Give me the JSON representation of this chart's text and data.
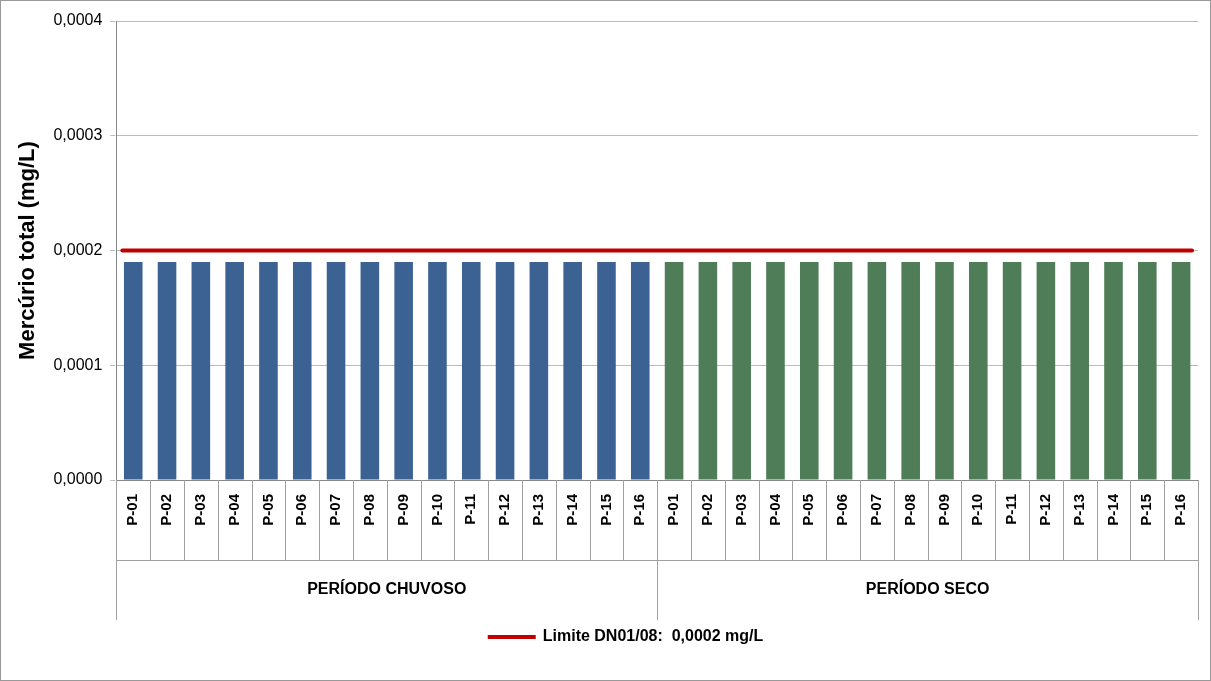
{
  "chart_data": {
    "type": "bar",
    "ylabel": "Mercúrio total (mg/L)",
    "categories": [
      "P-01",
      "P-02",
      "P-03",
      "P-04",
      "P-05",
      "P-06",
      "P-07",
      "P-08",
      "P-09",
      "P-10",
      "P-11",
      "P-12",
      "P-13",
      "P-14",
      "P-15",
      "P-16",
      "P-01",
      "P-02",
      "P-03",
      "P-04",
      "P-05",
      "P-06",
      "P-07",
      "P-08",
      "P-09",
      "P-10",
      "P-11",
      "P-12",
      "P-13",
      "P-14",
      "P-15",
      "P-16"
    ],
    "values": [
      0.00019,
      0.00019,
      0.00019,
      0.00019,
      0.00019,
      0.00019,
      0.00019,
      0.00019,
      0.00019,
      0.00019,
      0.00019,
      0.00019,
      0.00019,
      0.00019,
      0.00019,
      0.00019,
      0.00019,
      0.00019,
      0.00019,
      0.00019,
      0.00019,
      0.00019,
      0.00019,
      0.00019,
      0.00019,
      0.00019,
      0.00019,
      0.00019,
      0.00019,
      0.00019,
      0.00019,
      0.00019
    ],
    "colors": [
      "#3b6293",
      "#3b6293",
      "#3b6293",
      "#3b6293",
      "#3b6293",
      "#3b6293",
      "#3b6293",
      "#3b6293",
      "#3b6293",
      "#3b6293",
      "#3b6293",
      "#3b6293",
      "#3b6293",
      "#3b6293",
      "#3b6293",
      "#3b6293",
      "#4f7d57",
      "#4f7d57",
      "#4f7d57",
      "#4f7d57",
      "#4f7d57",
      "#4f7d57",
      "#4f7d57",
      "#4f7d57",
      "#4f7d57",
      "#4f7d57",
      "#4f7d57",
      "#4f7d57",
      "#4f7d57",
      "#4f7d57",
      "#4f7d57",
      "#4f7d57"
    ],
    "annotations": [
      "PERÍODO CHUVOSO",
      "PERÍODO SECO"
    ],
    "ylim": [
      0,
      0.0004
    ],
    "yticks": [
      {
        "value": 0,
        "label": "0,0000"
      },
      {
        "value": 0.0001,
        "label": "0,0001"
      },
      {
        "value": 0.0002,
        "label": "0,0002"
      },
      {
        "value": 0.0003,
        "label": "0,0003"
      },
      {
        "value": 0.0004,
        "label": "0,0004"
      }
    ],
    "ref_lines": [
      {
        "axis": "y",
        "value": 0.0002,
        "label": "Limite DN01/08:  0,0002 mg/L",
        "color": "#c00000"
      }
    ],
    "grid": "y",
    "legend": "bottom"
  }
}
